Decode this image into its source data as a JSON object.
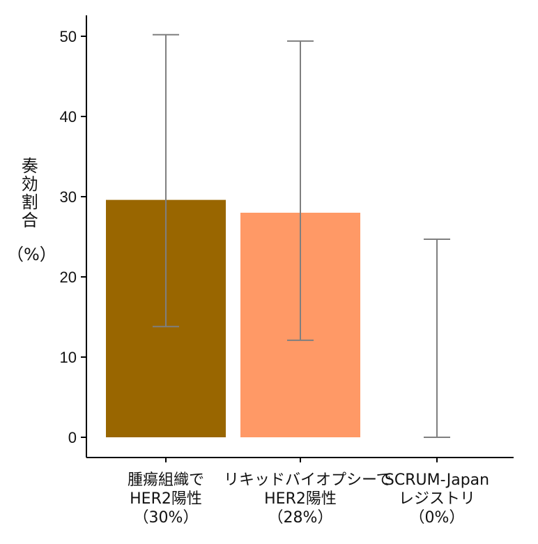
{
  "chart_data": {
    "type": "bar",
    "ylabel": "奏効割合",
    "yunit": "（%）",
    "ylim": [
      0,
      52
    ],
    "yticks": [
      0,
      10,
      20,
      30,
      40,
      50
    ],
    "grid": false,
    "categories": [
      {
        "lines": [
          "腫瘍組織で",
          "HER2陽性",
          "（30%）"
        ],
        "value": 29.6,
        "error_low": 13.8,
        "error_high": 50.2,
        "color": "#996600"
      },
      {
        "lines": [
          "リキッドバイオプシーで",
          "HER2陽性",
          "（28%）"
        ],
        "value": 28.0,
        "error_low": 12.1,
        "error_high": 49.4,
        "color": "#FF9966"
      },
      {
        "lines": [
          "SCRUM-Japan",
          "レジストリ",
          "（0%）"
        ],
        "value": 0,
        "error_low": 0,
        "error_high": 24.7,
        "color": "#FFFFFF"
      }
    ],
    "error_bar_color": "#7F7F7F",
    "axis_color": "#000000"
  }
}
